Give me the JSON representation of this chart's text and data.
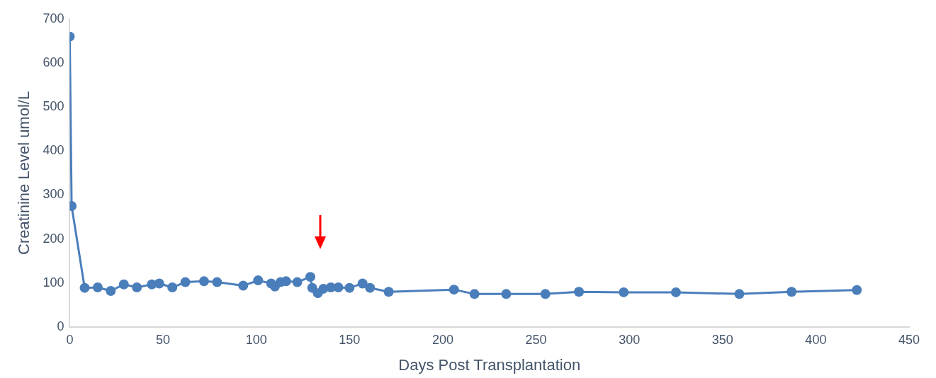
{
  "chart_data": {
    "type": "line",
    "xlabel": "Days Post Transplantation",
    "ylabel": "Creatinine Level umol/L",
    "x": [
      0,
      1,
      8,
      15,
      22,
      29,
      36,
      44,
      48,
      55,
      62,
      72,
      79,
      93,
      101,
      108,
      110,
      113,
      116,
      122,
      129,
      130,
      133,
      136,
      140,
      144,
      150,
      157,
      161,
      171,
      206,
      217,
      234,
      255,
      273,
      297,
      325,
      359,
      387,
      422
    ],
    "series": [
      {
        "color": "#4a7ebb",
        "values": [
          660,
          275,
          89,
          90,
          82,
          97,
          90,
          97,
          99,
          90,
          102,
          104,
          102,
          94,
          106,
          99,
          92,
          102,
          104,
          102,
          114,
          89,
          77,
          87,
          90,
          90,
          89,
          99,
          89,
          80,
          85,
          75,
          75,
          75,
          80,
          79,
          79,
          75,
          80,
          84
        ]
      }
    ],
    "xlim": [
      0,
      450
    ],
    "xticks": [
      0,
      50,
      100,
      150,
      200,
      250,
      300,
      350,
      400,
      450
    ],
    "ylim": [
      0,
      700
    ],
    "yticks": [
      0,
      100,
      200,
      300,
      400,
      500,
      600,
      700
    ],
    "grid": false,
    "legend": false,
    "marker": "circle",
    "line_style": "solid"
  }
}
